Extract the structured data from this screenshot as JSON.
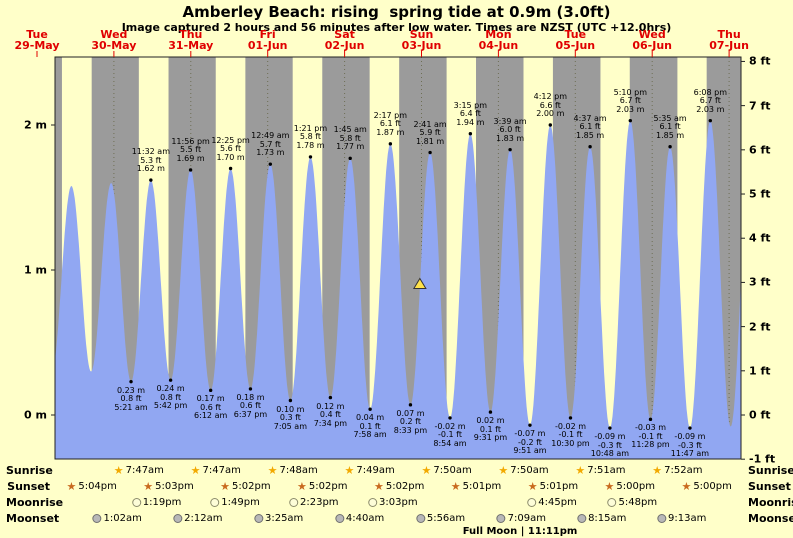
{
  "title": "Amberley Beach: rising  spring tide at 0.9m (3.0ft)",
  "subtitle": "Image captured 2 hours and 56 minutes after low water. Times are NZST (UTC +12.0hrs)",
  "colors": {
    "background": "#ffffc9",
    "night_band": "#9b9b9b",
    "tide_fill": "#91a7f2",
    "day_label_red": "#e00000",
    "marker_yellow": "#ffe24a"
  },
  "x_axis": {
    "days": [
      {
        "dow": "Tue",
        "date": "29-May"
      },
      {
        "dow": "Wed",
        "date": "30-May"
      },
      {
        "dow": "Thu",
        "date": "31-May"
      },
      {
        "dow": "Fri",
        "date": "01-Jun"
      },
      {
        "dow": "Sat",
        "date": "02-Jun"
      },
      {
        "dow": "Sun",
        "date": "03-Jun"
      },
      {
        "dow": "Mon",
        "date": "04-Jun"
      },
      {
        "dow": "Tue",
        "date": "05-Jun"
      },
      {
        "dow": "Wed",
        "date": "06-Jun"
      },
      {
        "dow": "Thu",
        "date": "07-Jun"
      }
    ]
  },
  "y_axis_left": {
    "unit": "m",
    "ticks": [
      {
        "text": "2 m",
        "m": 2
      },
      {
        "text": "1 m",
        "m": 1
      },
      {
        "text": "0 m",
        "m": 0
      }
    ]
  },
  "y_axis_right": {
    "unit": "ft",
    "ticks": [
      {
        "text": "8 ft",
        "ft": 8
      },
      {
        "text": "7 ft",
        "ft": 7
      },
      {
        "text": "6 ft",
        "ft": 6
      },
      {
        "text": "5 ft",
        "ft": 5
      },
      {
        "text": "4 ft",
        "ft": 4
      },
      {
        "text": "3 ft",
        "ft": 3
      },
      {
        "text": "2 ft",
        "ft": 2
      },
      {
        "text": "1 ft",
        "ft": 1
      },
      {
        "text": "0 ft",
        "ft": 0
      },
      {
        "text": "-1 ft",
        "ft": -1
      }
    ]
  },
  "chart_data": {
    "type": "area",
    "x_unit": "days since 29-May 00:00 NZST",
    "ylim_m": [
      -0.3,
      2.47
    ],
    "night_bands": [
      [
        0.234,
        0.3243
      ],
      [
        0.7111,
        1.3243
      ],
      [
        1.7104,
        2.3243
      ],
      [
        2.7097,
        3.325
      ],
      [
        3.7097,
        4.3257
      ],
      [
        4.7097,
        5.3264
      ],
      [
        5.709,
        6.3264
      ],
      [
        6.709,
        7.3271
      ],
      [
        7.7083,
        8.3278
      ],
      [
        8.7083,
        9.155
      ]
    ],
    "extremes": [
      {
        "t": 0.1875,
        "h_m": 0.28,
        "kind": "low",
        "lines": null
      },
      {
        "t": 0.4472,
        "h_m": 1.58,
        "kind": "high",
        "lines": null
      },
      {
        "t": 0.7028,
        "h_m": 0.3,
        "kind": "low",
        "lines": null
      },
      {
        "t": 0.9639,
        "h_m": 1.6,
        "kind": "high",
        "lines": null
      },
      {
        "t": 1.2229,
        "h_m": 0.23,
        "kind": "low",
        "lines": [
          "0.23 m",
          "0.8 ft",
          "5:21 am"
        ]
      },
      {
        "t": 1.4806,
        "h_m": 1.62,
        "kind": "high",
        "lines": [
          "11:32 am",
          "5.3 ft",
          "1.62 m"
        ]
      },
      {
        "t": 1.7375,
        "h_m": 0.24,
        "kind": "low",
        "lines": [
          "0.24 m",
          "0.8 ft",
          "5:42 pm"
        ]
      },
      {
        "t": 1.9972,
        "h_m": 1.69,
        "kind": "high",
        "lines": [
          "11:56 pm",
          "5.5 ft",
          "1.69 m"
        ]
      },
      {
        "t": 2.2583,
        "h_m": 0.17,
        "kind": "low",
        "lines": [
          "0.17 m",
          "0.6 ft",
          "6:12 am"
        ]
      },
      {
        "t": 2.5174,
        "h_m": 1.7,
        "kind": "high",
        "lines": [
          "12:25 pm",
          "5.6 ft",
          "1.70 m"
        ]
      },
      {
        "t": 2.7757,
        "h_m": 0.18,
        "kind": "low",
        "lines": [
          "0.18 m",
          "0.6 ft",
          "6:37 pm"
        ]
      },
      {
        "t": 3.034,
        "h_m": 1.73,
        "kind": "high",
        "lines": [
          "12:49 am",
          "5.7 ft",
          "1.73 m"
        ]
      },
      {
        "t": 3.2951,
        "h_m": 0.1,
        "kind": "low",
        "lines": [
          "0.10 m",
          "0.3 ft",
          "7:05 am"
        ]
      },
      {
        "t": 3.5563,
        "h_m": 1.78,
        "kind": "high",
        "lines": [
          "1:21 pm",
          "5.8 ft",
          "1.78 m"
        ]
      },
      {
        "t": 3.8153,
        "h_m": 0.12,
        "kind": "low",
        "lines": [
          "0.12 m",
          "0.4 ft",
          "7:34 pm"
        ]
      },
      {
        "t": 4.0729,
        "h_m": 1.77,
        "kind": "high",
        "lines": [
          "1:45 am",
          "5.8 ft",
          "1.77 m"
        ]
      },
      {
        "t": 4.3319,
        "h_m": 0.04,
        "kind": "low",
        "lines": [
          "0.04 m",
          "0.1 ft",
          "7:58 am"
        ]
      },
      {
        "t": 4.5951,
        "h_m": 1.87,
        "kind": "high",
        "lines": [
          "2:17 pm",
          "6.1 ft",
          "1.87 m"
        ]
      },
      {
        "t": 4.8563,
        "h_m": 0.07,
        "kind": "low",
        "lines": [
          "0.07 m",
          "0.2 ft",
          "8:33 pm"
        ]
      },
      {
        "t": 5.1118,
        "h_m": 1.81,
        "kind": "high",
        "lines": [
          "2:41 am",
          "5.9 ft",
          "1.81 m"
        ]
      },
      {
        "t": 5.3708,
        "h_m": -0.02,
        "kind": "low",
        "lines": [
          "-0.02 m",
          "-0.1 ft",
          "8:54 am"
        ]
      },
      {
        "t": 5.6354,
        "h_m": 1.94,
        "kind": "high",
        "lines": [
          "3:15 pm",
          "6.4 ft",
          "1.94 m"
        ]
      },
      {
        "t": 5.8965,
        "h_m": 0.02,
        "kind": "low",
        "lines": [
          "0.02 m",
          "0.1 ft",
          "9:31 pm"
        ]
      },
      {
        "t": 6.1521,
        "h_m": 1.83,
        "kind": "high",
        "lines": [
          "3:39 am",
          "6.0 ft",
          "1.83 m"
        ]
      },
      {
        "t": 6.4104,
        "h_m": -0.07,
        "kind": "low",
        "lines": [
          "-0.07 m",
          "-0.2 ft",
          "9:51 am"
        ]
      },
      {
        "t": 6.675,
        "h_m": 2.0,
        "kind": "high",
        "lines": [
          "4:12 pm",
          "6.6 ft",
          "2.00 m"
        ]
      },
      {
        "t": 6.9375,
        "h_m": -0.02,
        "kind": "low",
        "lines": [
          "-0.02 m",
          "-0.1 ft",
          "10:30 pm"
        ]
      },
      {
        "t": 7.1924,
        "h_m": 1.85,
        "kind": "high",
        "lines": [
          "4:37 am",
          "6.1 ft",
          "1.85 m"
        ]
      },
      {
        "t": 7.45,
        "h_m": -0.09,
        "kind": "low",
        "lines": [
          "-0.09 m",
          "-0.3 ft",
          "10:48 am"
        ]
      },
      {
        "t": 7.7153,
        "h_m": 2.03,
        "kind": "high",
        "lines": [
          "5:10 pm",
          "6.7 ft",
          "2.03 m"
        ]
      },
      {
        "t": 7.9778,
        "h_m": -0.03,
        "kind": "low",
        "lines": [
          "-0.03 m",
          "-0.1 ft",
          "11:28 pm"
        ]
      },
      {
        "t": 8.2326,
        "h_m": 1.85,
        "kind": "high",
        "lines": [
          "5:35 am",
          "6.1 ft",
          "1.85 m"
        ]
      },
      {
        "t": 8.491,
        "h_m": -0.09,
        "kind": "low",
        "lines": [
          "-0.09 m",
          "-0.3 ft",
          "11:47 am"
        ]
      },
      {
        "t": 8.7556,
        "h_m": 2.03,
        "kind": "high",
        "lines": [
          "6:08 pm",
          "6.7 ft",
          "2.03 m"
        ]
      },
      {
        "t": 9.02,
        "h_m": -0.08,
        "kind": "low",
        "lines": null
      },
      {
        "t": 9.28,
        "h_m": 1.85,
        "kind": "high",
        "lines": null
      }
    ],
    "marker": {
      "t": 4.9785,
      "h_m": 0.9
    }
  },
  "astro": {
    "rows": [
      {
        "label": "Sunrise",
        "icon": "sunrise-icon",
        "events": [
          {
            "time": "7:47am",
            "t": 1.3243
          },
          {
            "time": "7:47am",
            "t": 2.3243
          },
          {
            "time": "7:48am",
            "t": 3.325
          },
          {
            "time": "7:49am",
            "t": 4.3257
          },
          {
            "time": "7:50am",
            "t": 5.3264
          },
          {
            "time": "7:50am",
            "t": 6.3264
          },
          {
            "time": "7:51am",
            "t": 7.3271
          },
          {
            "time": "7:52am",
            "t": 8.3278
          }
        ]
      },
      {
        "label": "Sunset",
        "icon": "sunset-icon",
        "events": [
          {
            "time": "5:04pm",
            "t": 0.7111
          },
          {
            "time": "5:03pm",
            "t": 1.7104
          },
          {
            "time": "5:02pm",
            "t": 2.7097
          },
          {
            "time": "5:02pm",
            "t": 3.7097
          },
          {
            "time": "5:02pm",
            "t": 4.7097
          },
          {
            "time": "5:01pm",
            "t": 5.709
          },
          {
            "time": "5:01pm",
            "t": 6.709
          },
          {
            "time": "5:00pm",
            "t": 7.7083
          },
          {
            "time": "5:00pm",
            "t": 8.7083
          }
        ]
      },
      {
        "label": "Moonrise",
        "icon": "moonrise-icon",
        "events": [
          {
            "time": "1:19pm",
            "t": 1.5549
          },
          {
            "time": "1:49pm",
            "t": 2.5757
          },
          {
            "time": "2:23pm",
            "t": 3.5993
          },
          {
            "time": "3:03pm",
            "t": 4.6271
          },
          {
            "time": "4:45pm",
            "t": 6.6979
          },
          {
            "time": "5:48pm",
            "t": 7.7417
          }
        ]
      },
      {
        "label": "Moonset",
        "icon": "moonset-icon",
        "events": [
          {
            "time": "1:02am",
            "t": 1.0431
          },
          {
            "time": "2:12am",
            "t": 2.0917
          },
          {
            "time": "3:25am",
            "t": 3.1424
          },
          {
            "time": "4:40am",
            "t": 4.1944
          },
          {
            "time": "5:56am",
            "t": 5.2472
          },
          {
            "time": "7:09am",
            "t": 6.2979
          },
          {
            "time": "8:15am",
            "t": 7.3438
          },
          {
            "time": "9:13am",
            "t": 8.384
          }
        ]
      }
    ],
    "full_moon": "Full Moon | 11:11pm"
  }
}
